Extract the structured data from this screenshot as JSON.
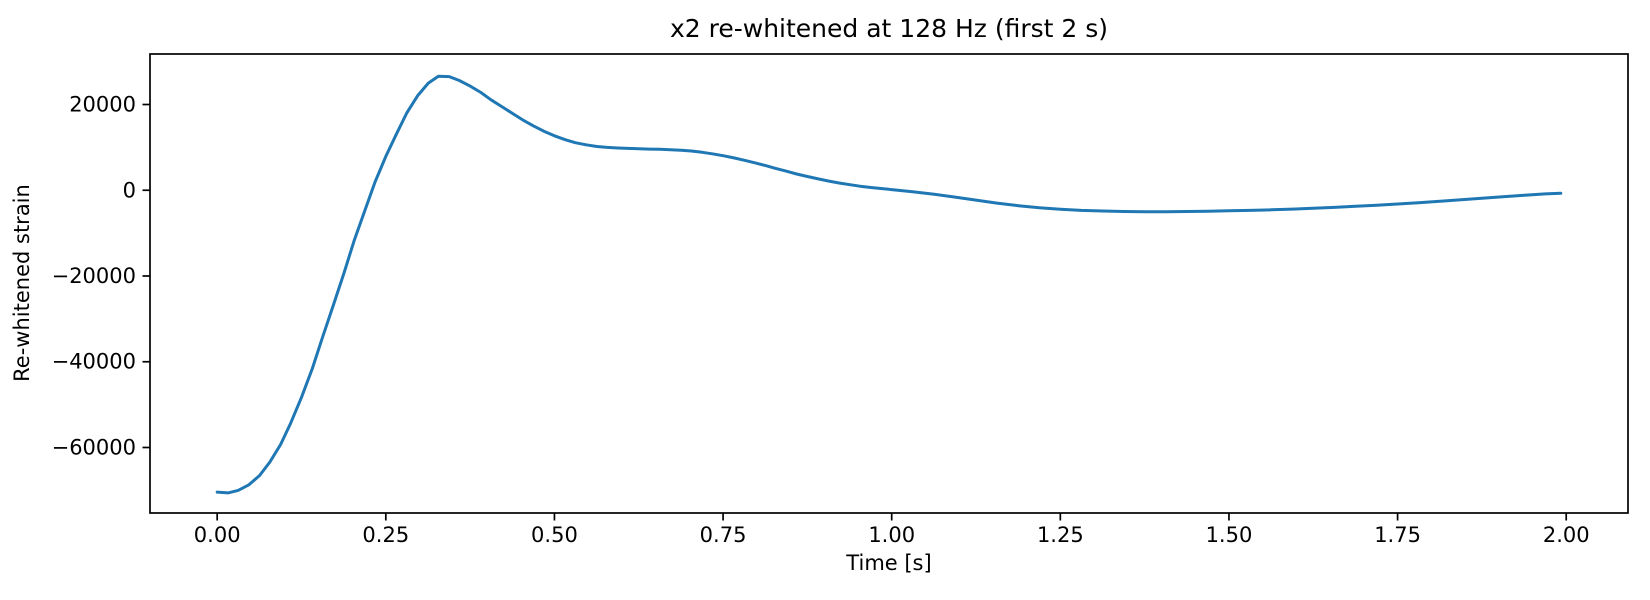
{
  "chart_data": {
    "type": "line",
    "title": "x2 re-whitened at 128 Hz (first 2 s)",
    "xlabel": "Time [s]",
    "ylabel": "Re-whitened strain",
    "xlim": [
      -0.0996,
      2.0916
    ],
    "ylim": [
      -75280,
      31780
    ],
    "x_ticks": [
      0.0,
      0.25,
      0.5,
      0.75,
      1.0,
      1.25,
      1.5,
      1.75,
      2.0
    ],
    "x_tick_labels": [
      "0.00",
      "0.25",
      "0.50",
      "0.75",
      "1.00",
      "1.25",
      "1.50",
      "1.75",
      "2.00"
    ],
    "y_ticks": [
      20000,
      0,
      -20000,
      -40000,
      -60000
    ],
    "y_tick_labels": [
      "20000",
      "0",
      "−20000",
      "−40000",
      "−60000"
    ],
    "grid": false,
    "legend": null,
    "line_color": "#1f77b4",
    "axis_color": "#000000",
    "background_color": "#ffffff",
    "series": [
      {
        "name": "x2 re-whitened",
        "x": [
          0.0,
          0.016,
          0.031,
          0.047,
          0.063,
          0.078,
          0.094,
          0.109,
          0.125,
          0.141,
          0.156,
          0.172,
          0.188,
          0.203,
          0.219,
          0.234,
          0.25,
          0.266,
          0.281,
          0.297,
          0.313,
          0.328,
          0.344,
          0.359,
          0.375,
          0.391,
          0.406,
          0.422,
          0.438,
          0.453,
          0.469,
          0.484,
          0.5,
          0.516,
          0.531,
          0.547,
          0.563,
          0.578,
          0.594,
          0.609,
          0.625,
          0.641,
          0.656,
          0.672,
          0.688,
          0.703,
          0.719,
          0.734,
          0.75,
          0.766,
          0.781,
          0.797,
          0.813,
          0.828,
          0.844,
          0.859,
          0.875,
          0.891,
          0.906,
          0.922,
          0.938,
          0.953,
          0.969,
          0.984,
          1.0,
          1.031,
          1.063,
          1.094,
          1.125,
          1.156,
          1.188,
          1.219,
          1.25,
          1.281,
          1.313,
          1.344,
          1.375,
          1.406,
          1.438,
          1.469,
          1.5,
          1.531,
          1.563,
          1.594,
          1.625,
          1.656,
          1.688,
          1.719,
          1.75,
          1.781,
          1.813,
          1.844,
          1.875,
          1.906,
          1.938,
          1.969,
          1.992
        ],
        "y": [
          -70400,
          -70600,
          -70000,
          -68700,
          -66500,
          -63400,
          -59300,
          -54300,
          -48300,
          -41600,
          -34400,
          -26900,
          -19300,
          -11800,
          -4700,
          1900,
          7900,
          13200,
          18000,
          22000,
          25000,
          26600,
          26500,
          25600,
          24300,
          22800,
          21100,
          19500,
          17900,
          16400,
          15000,
          13800,
          12700,
          11800,
          11100,
          10600,
          10200,
          10000,
          9850,
          9750,
          9700,
          9600,
          9550,
          9450,
          9350,
          9150,
          8850,
          8500,
          8050,
          7550,
          7000,
          6400,
          5750,
          5100,
          4450,
          3800,
          3200,
          2650,
          2150,
          1700,
          1300,
          950,
          650,
          400,
          150,
          -350,
          -950,
          -1600,
          -2300,
          -3000,
          -3600,
          -4100,
          -4450,
          -4700,
          -4850,
          -4950,
          -5000,
          -5000,
          -4950,
          -4900,
          -4800,
          -4700,
          -4550,
          -4400,
          -4200,
          -4000,
          -3750,
          -3500,
          -3200,
          -2900,
          -2550,
          -2200,
          -1850,
          -1500,
          -1150,
          -850,
          -700
        ]
      }
    ]
  }
}
